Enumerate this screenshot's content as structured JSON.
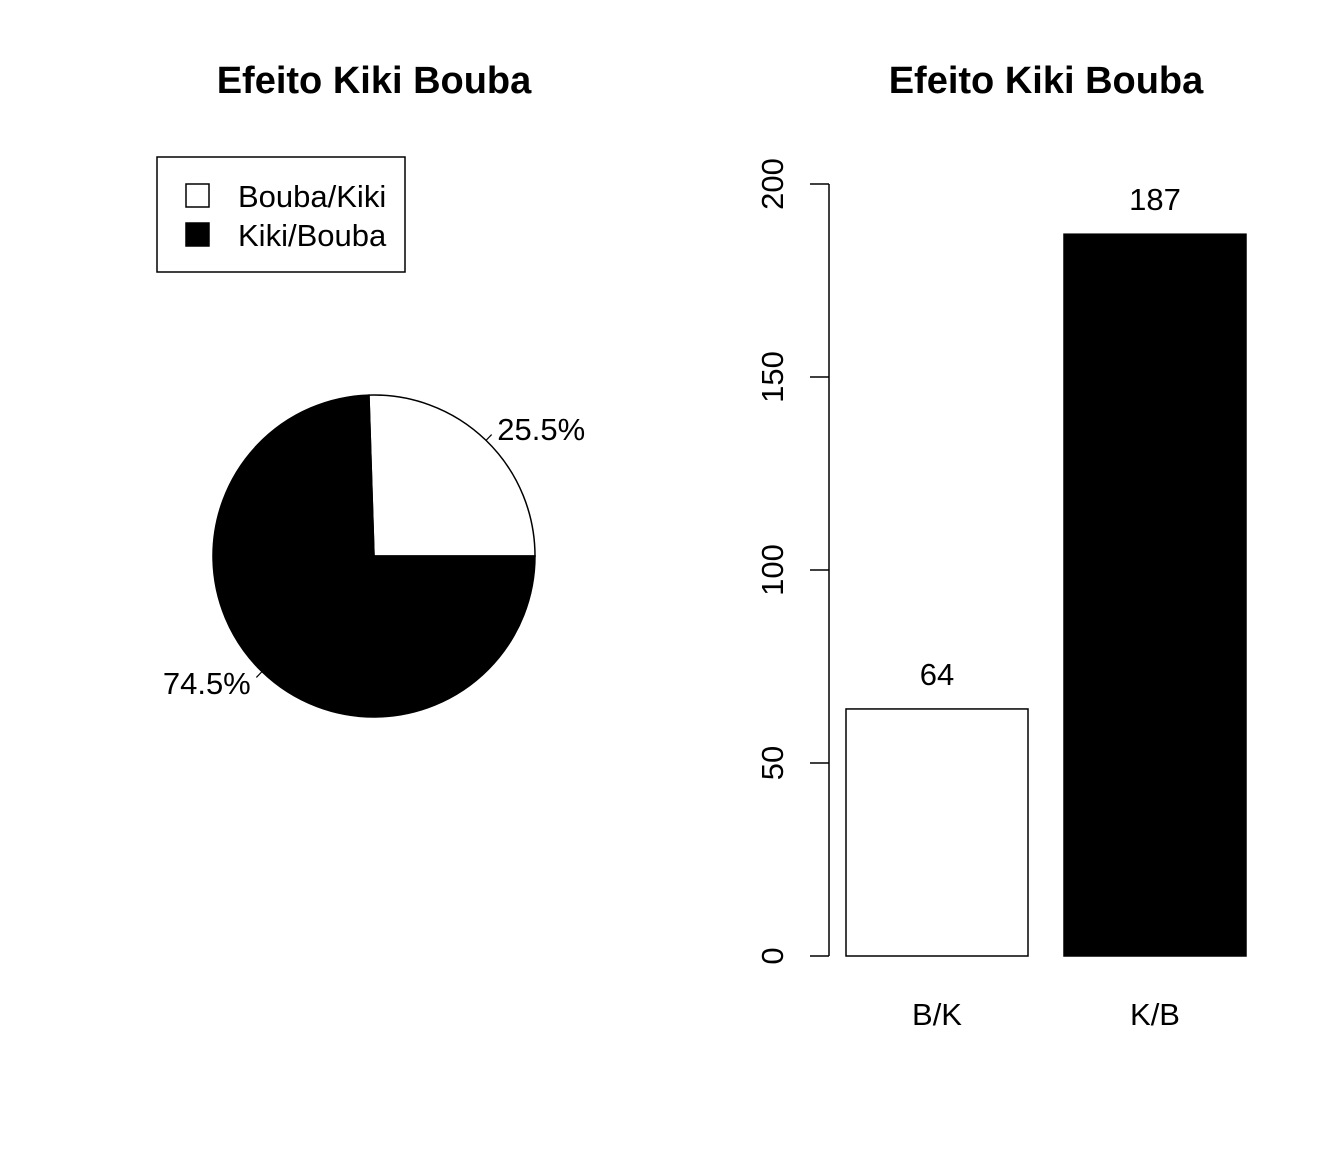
{
  "charts": [
    {
      "title": "Efeito Kiki Bouba",
      "legend": {
        "position": "top-left",
        "items": [
          {
            "label": "Bouba/Kiki",
            "color": "#ffffff"
          },
          {
            "label": "Kiki/Bouba",
            "color": "#000000"
          }
        ]
      }
    },
    {
      "title": "Efeito Kiki Bouba"
    }
  ],
  "chart_data": [
    {
      "type": "pie",
      "title": "Efeito Kiki Bouba",
      "slices": [
        {
          "name": "Bouba/Kiki",
          "value": 25.5,
          "label": "25.5%",
          "color": "#ffffff"
        },
        {
          "name": "Kiki/Bouba",
          "value": 74.5,
          "label": "74.5%",
          "color": "#000000"
        }
      ],
      "legend_position": "top-left"
    },
    {
      "type": "bar",
      "title": "Efeito Kiki Bouba",
      "categories": [
        "B/K",
        "K/B"
      ],
      "values": [
        64,
        187
      ],
      "value_labels": [
        "64",
        "187"
      ],
      "colors": [
        "#ffffff",
        "#000000"
      ],
      "ylim": [
        0,
        200
      ],
      "yticks": [
        0,
        50,
        100,
        150,
        200
      ],
      "ytick_labels": [
        "0",
        "50",
        "100",
        "150",
        "200"
      ],
      "xlabel": "",
      "ylabel": "",
      "grid": false
    }
  ]
}
